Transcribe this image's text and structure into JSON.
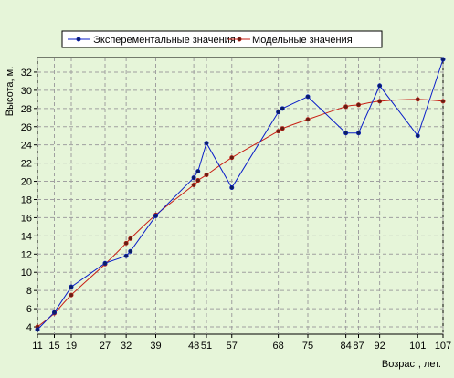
{
  "colors": {
    "background": "#e6f5d9",
    "plot_background": "#e6f5d9",
    "grid": "#a0a0a0",
    "axis": "#000000",
    "legend_background": "#ffffff",
    "series_experimental": "#0a1ec8",
    "series_model": "#c81e14",
    "marker_experimental": "#0a1e64",
    "marker_model": "#641e14"
  },
  "chart_data": {
    "type": "line",
    "title": "",
    "xlabel": "Возраст, лет.",
    "ylabel": "Высота, м.",
    "xlim": [
      11,
      107
    ],
    "ylim": [
      3.2,
      33.6
    ],
    "x_ticks": [
      11,
      15,
      19,
      27,
      32,
      39,
      48,
      51,
      57,
      68,
      75,
      84,
      87,
      92,
      101,
      107
    ],
    "y_ticks": [
      4,
      6,
      8,
      10,
      12,
      14,
      16,
      18,
      20,
      22,
      24,
      26,
      28,
      30,
      32
    ],
    "grid": true,
    "grid_style": "dashed",
    "legend_position": "top",
    "series": [
      {
        "name": "Эксперементальные значения",
        "x": [
          11,
          15,
          19,
          27,
          32,
          33,
          39,
          48,
          49,
          51,
          57,
          68,
          69,
          75,
          84,
          87,
          92,
          101,
          107
        ],
        "y": [
          3.7,
          5.6,
          8.4,
          11.0,
          11.8,
          12.3,
          16.2,
          20.4,
          21.1,
          24.2,
          19.3,
          27.6,
          28.0,
          29.3,
          25.3,
          25.3,
          30.5,
          25.0,
          33.4
        ]
      },
      {
        "name": "Модельные значения",
        "x": [
          11,
          15,
          19,
          27,
          32,
          33,
          39,
          48,
          49,
          51,
          57,
          68,
          69,
          75,
          84,
          87,
          92,
          101,
          107
        ],
        "y": [
          4.0,
          5.5,
          7.5,
          10.9,
          13.2,
          13.7,
          16.3,
          19.6,
          20.1,
          20.7,
          22.6,
          25.5,
          25.8,
          26.8,
          28.2,
          28.4,
          28.8,
          29.0,
          28.8
        ]
      }
    ]
  }
}
